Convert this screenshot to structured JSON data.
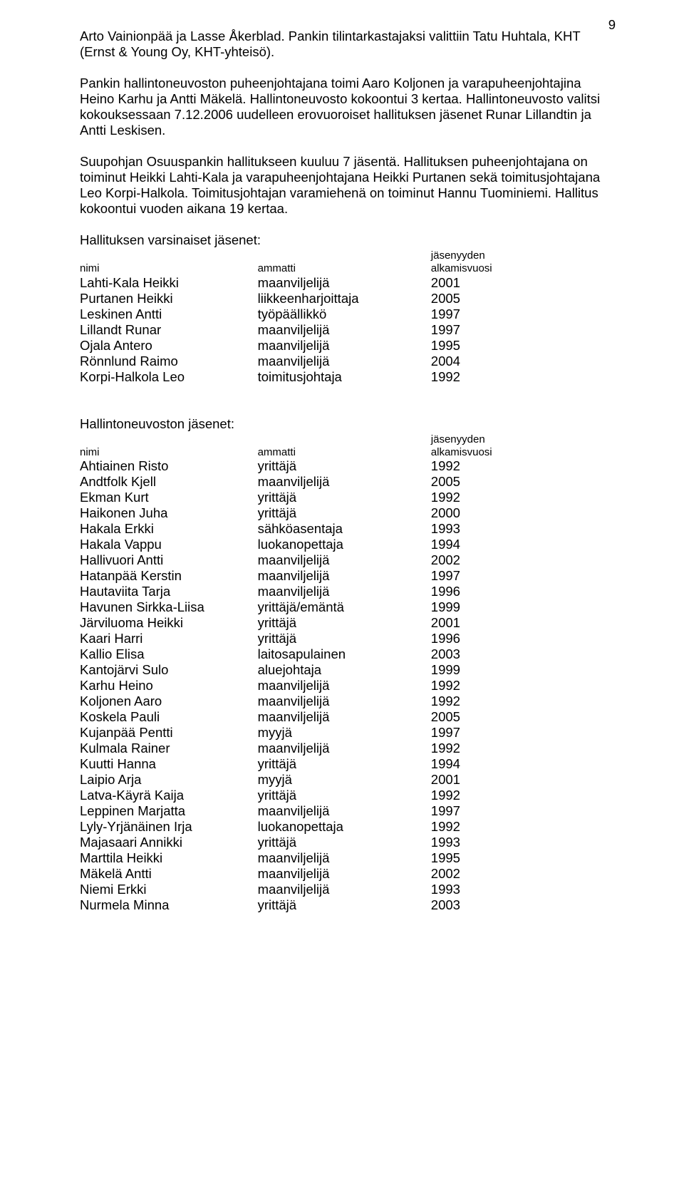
{
  "page_number": "9",
  "paragraphs": {
    "p1": "Arto Vainionpää ja Lasse Åkerblad. Pankin tilintarkastajaksi valittiin Tatu Huhtala, KHT (Ernst & Young Oy, KHT-yhteisö).",
    "p2": "Pankin hallintoneuvoston puheenjohtajana toimi Aaro Koljonen ja varapuheenjohtajina Heino Karhu ja Antti Mäkelä. Hallintoneuvosto kokoontui 3 kertaa. Hallintoneuvosto valitsi kokouksessaan 7.12.2006 uudelleen erovuoroiset hallituksen jäsenet Runar Lillandtin ja Antti Leskisen.",
    "p3": "Suupohjan Osuuspankin hallitukseen kuuluu 7 jäsentä. Hallituksen puheenjohtajana on toiminut Heikki Lahti-Kala ja varapuheenjohtajana Heikki Purtanen sekä toimitusjohtajana Leo Korpi-Halkola. Toimitusjohtajan varamiehenä on toiminut Hannu Tuominiemi. Hallitus kokoontui vuoden aikana 19 kertaa."
  },
  "board_members": {
    "title": "Hallituksen varsinaiset jäsenet:",
    "header": {
      "name": "nimi",
      "occupation": "ammatti",
      "year_line1": "jäsenyyden",
      "year_line2": "alkamisvuosi"
    },
    "rows": [
      {
        "name": "Lahti-Kala Heikki",
        "occupation": "maanviljelijä",
        "year": "2001"
      },
      {
        "name": "Purtanen Heikki",
        "occupation": "liikkeenharjoittaja",
        "year": "2005"
      },
      {
        "name": "Leskinen Antti",
        "occupation": "työpäällikkö",
        "year": "1997"
      },
      {
        "name": "Lillandt Runar",
        "occupation": "maanviljelijä",
        "year": "1997"
      },
      {
        "name": "Ojala Antero",
        "occupation": "maanviljelijä",
        "year": "1995"
      },
      {
        "name": "Rönnlund Raimo",
        "occupation": "maanviljelijä",
        "year": "2004"
      },
      {
        "name": "Korpi-Halkola Leo",
        "occupation": "toimitusjohtaja",
        "year": "1992"
      }
    ]
  },
  "council_members": {
    "title": "Hallintoneuvoston jäsenet:",
    "header": {
      "name": "nimi",
      "occupation": "ammatti",
      "year_line1": "jäsenyyden",
      "year_line2": "alkamisvuosi"
    },
    "rows": [
      {
        "name": "Ahtiainen Risto",
        "occupation": "yrittäjä",
        "year": "1992"
      },
      {
        "name": "Andtfolk Kjell",
        "occupation": "maanviljelijä",
        "year": "2005"
      },
      {
        "name": "Ekman Kurt",
        "occupation": "yrittäjä",
        "year": "1992"
      },
      {
        "name": "Haikonen Juha",
        "occupation": "yrittäjä",
        "year": "2000"
      },
      {
        "name": "Hakala Erkki",
        "occupation": "sähköasentaja",
        "year": "1993"
      },
      {
        "name": "Hakala Vappu",
        "occupation": "luokanopettaja",
        "year": "1994"
      },
      {
        "name": "Hallivuori Antti",
        "occupation": "maanviljelijä",
        "year": "2002"
      },
      {
        "name": "Hatanpää Kerstin",
        "occupation": "maanviljelijä",
        "year": "1997"
      },
      {
        "name": "Hautaviita Tarja",
        "occupation": "maanviljelijä",
        "year": "1996"
      },
      {
        "name": "Havunen Sirkka-Liisa",
        "occupation": "yrittäjä/emäntä",
        "year": "1999"
      },
      {
        "name": "Järviluoma Heikki",
        "occupation": "yrittäjä",
        "year": "2001"
      },
      {
        "name": "Kaari Harri",
        "occupation": "yrittäjä",
        "year": "1996"
      },
      {
        "name": "Kallio Elisa",
        "occupation": "laitosapulainen",
        "year": "2003"
      },
      {
        "name": "Kantojärvi Sulo",
        "occupation": "aluejohtaja",
        "year": "1999"
      },
      {
        "name": "Karhu Heino",
        "occupation": "maanviljelijä",
        "year": "1992"
      },
      {
        "name": "Koljonen Aaro",
        "occupation": "maanviljelijä",
        "year": "1992"
      },
      {
        "name": "Koskela Pauli",
        "occupation": "maanviljelijä",
        "year": "2005"
      },
      {
        "name": "Kujanpää Pentti",
        "occupation": "myyjä",
        "year": "1997"
      },
      {
        "name": "Kulmala Rainer",
        "occupation": "maanviljelijä",
        "year": "1992"
      },
      {
        "name": "Kuutti Hanna",
        "occupation": "yrittäjä",
        "year": "1994"
      },
      {
        "name": "Laipio Arja",
        "occupation": "myyjä",
        "year": "2001"
      },
      {
        "name": "Latva-Käyrä Kaija",
        "occupation": "yrittäjä",
        "year": "1992"
      },
      {
        "name": "Leppinen Marjatta",
        "occupation": "maanviljelijä",
        "year": "1997"
      },
      {
        "name": "Lyly-Yrjänäinen Irja",
        "occupation": "luokanopettaja",
        "year": "1992"
      },
      {
        "name": "Majasaari Annikki",
        "occupation": "yrittäjä",
        "year": "1993"
      },
      {
        "name": "Marttila Heikki",
        "occupation": "maanviljelijä",
        "year": "1995"
      },
      {
        "name": "Mäkelä Antti",
        "occupation": "maanviljelijä",
        "year": "2002"
      },
      {
        "name": "Niemi Erkki",
        "occupation": "maanviljelijä",
        "year": "1993"
      },
      {
        "name": "Nurmela Minna",
        "occupation": "yrittäjä",
        "year": "2003"
      }
    ]
  }
}
